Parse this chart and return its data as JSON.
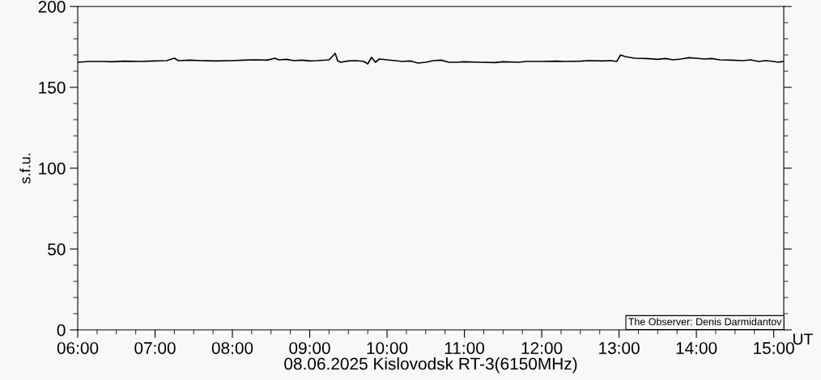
{
  "chart_data": {
    "type": "line",
    "xlabel": "08.06.2025 Kislovodsk RT-3(6150MHz)",
    "ylabel": "s.f.u.",
    "annotations": [
      "The Observer: Denis Darmidantov",
      "UT"
    ],
    "series": [
      {
        "color": "#000000",
        "x": [
          6.0,
          6.15,
          6.3,
          6.45,
          6.6,
          6.8,
          7.0,
          7.15,
          7.25,
          7.3,
          7.45,
          7.6,
          7.8,
          8.0,
          8.15,
          8.3,
          8.45,
          8.55,
          8.6,
          8.7,
          8.8,
          8.9,
          9.0,
          9.1,
          9.25,
          9.33,
          9.36,
          9.4,
          9.5,
          9.6,
          9.7,
          9.75,
          9.8,
          9.85,
          9.9,
          10.0,
          10.1,
          10.2,
          10.3,
          10.4,
          10.5,
          10.6,
          10.7,
          10.8,
          10.9,
          11.0,
          11.2,
          11.4,
          11.5,
          11.7,
          11.8,
          12.0,
          12.2,
          12.3,
          12.5,
          12.6,
          12.8,
          12.9,
          12.97,
          13.02,
          13.08,
          13.2,
          13.35,
          13.5,
          13.6,
          13.7,
          13.8,
          13.9,
          14.0,
          14.1,
          14.2,
          14.3,
          14.45,
          14.6,
          14.7,
          14.8,
          14.9,
          15.0,
          15.06,
          15.12
        ],
        "values": [
          165.5,
          166,
          166,
          165.8,
          166.2,
          166,
          166.3,
          166.5,
          168,
          166.5,
          166.8,
          166.5,
          166.3,
          166.5,
          166.8,
          167,
          166.8,
          168,
          167,
          167.3,
          166.5,
          166.8,
          166.3,
          166.5,
          167,
          171,
          166.5,
          165.5,
          166.3,
          166.5,
          166,
          164.5,
          168.5,
          165.5,
          167.5,
          167,
          166.5,
          166,
          166.3,
          165,
          165.5,
          166.5,
          166.8,
          165.5,
          165.5,
          165.8,
          165.5,
          165.3,
          165.8,
          165.5,
          166,
          166,
          166.2,
          166,
          166.2,
          166.5,
          166.3,
          166.5,
          166,
          170,
          169,
          168,
          167.8,
          167.3,
          167.8,
          167,
          167.5,
          168.3,
          168,
          167.5,
          167.8,
          167,
          166.8,
          166.5,
          167,
          166,
          166.5,
          166,
          165.5,
          166
        ]
      }
    ],
    "xlim": [
      6.0,
      15.13
    ],
    "ylim": [
      0,
      200
    ],
    "xticks": [
      {
        "value": 6,
        "label": "06:00"
      },
      {
        "value": 7,
        "label": "07:00"
      },
      {
        "value": 8,
        "label": "08:00"
      },
      {
        "value": 9,
        "label": "09:00"
      },
      {
        "value": 10,
        "label": "10:00"
      },
      {
        "value": 11,
        "label": "11:00"
      },
      {
        "value": 12,
        "label": "12:00"
      },
      {
        "value": 13,
        "label": "13:00"
      },
      {
        "value": 14,
        "label": "14:00"
      },
      {
        "value": 15,
        "label": "15:00"
      }
    ],
    "yticks": [
      0,
      50,
      100,
      150,
      200
    ],
    "grid": false,
    "legend": false
  }
}
